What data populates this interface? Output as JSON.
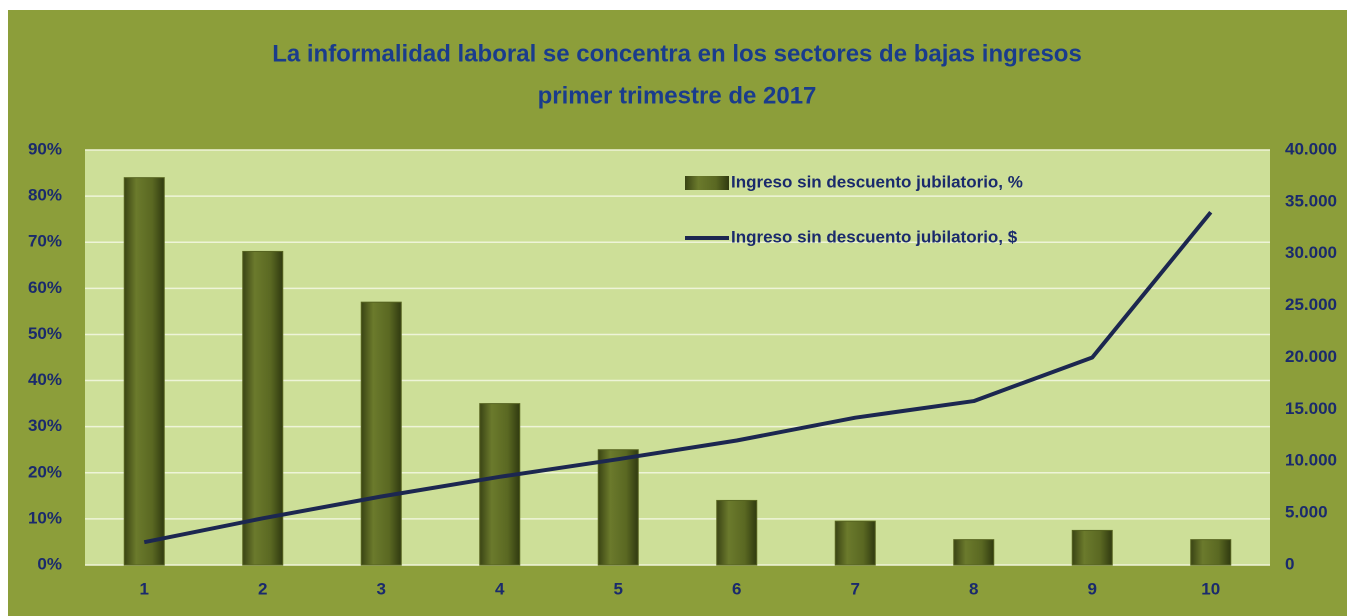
{
  "chart_data": {
    "type": "bar_line",
    "title": "La informalidad laboral se concentra en los sectores de bajas ingresos",
    "subtitle": "primer trimestre de 2017",
    "categories": [
      "1",
      "2",
      "3",
      "4",
      "5",
      "6",
      "7",
      "8",
      "9",
      "10"
    ],
    "series": [
      {
        "name": "Ingreso sin descuento jubilatorio, %",
        "type": "bar",
        "color": "#566320",
        "values": [
          84,
          68,
          57,
          35,
          25,
          14,
          9.5,
          5.5,
          7.5,
          5.5
        ]
      },
      {
        "name": "Ingreso sin descuento jubilatorio, $",
        "type": "line",
        "axis": "y2",
        "color": "#1c2750",
        "values": [
          2200,
          4500,
          6600,
          8500,
          10200,
          12000,
          14200,
          15800,
          20000,
          34000
        ]
      }
    ],
    "ylim": [
      0,
      90
    ],
    "yticks": [
      {
        "value": 0,
        "label": "0%"
      },
      {
        "value": 10,
        "label": "10%"
      },
      {
        "value": 20,
        "label": "20%"
      },
      {
        "value": 30,
        "label": "30%"
      },
      {
        "value": 40,
        "label": "40%"
      },
      {
        "value": 50,
        "label": "50%"
      },
      {
        "value": 60,
        "label": "60%"
      },
      {
        "value": 70,
        "label": "70%"
      },
      {
        "value": 80,
        "label": "80%"
      },
      {
        "value": 90,
        "label": "90%"
      }
    ],
    "y2lim": [
      0,
      40000
    ],
    "y2ticks": [
      0,
      {
        "value": 5000,
        "label": "5.000"
      },
      {
        "value": 10000,
        "label": "10.000"
      },
      {
        "value": 15000,
        "label": "15.000"
      },
      {
        "value": 20000,
        "label": "20.000"
      },
      {
        "value": 25000,
        "label": "25.000"
      },
      {
        "value": 30000,
        "label": "30.000"
      },
      {
        "value": 35000,
        "label": "35.000"
      },
      {
        "value": 40000,
        "label": "40.000"
      }
    ],
    "grid": true,
    "legend": "top-right"
  }
}
